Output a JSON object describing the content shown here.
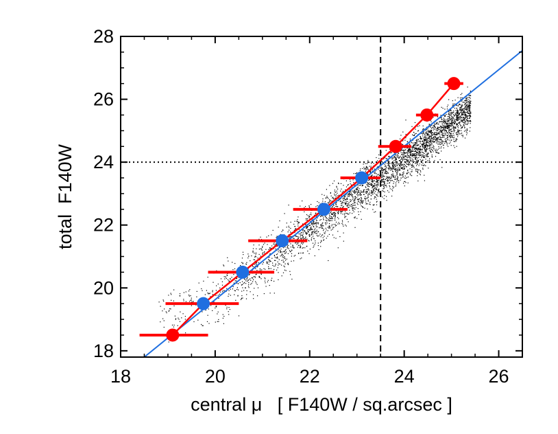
{
  "chart_data": {
    "type": "scatter",
    "title": "",
    "xlabel": "central μ   [ F140W / sq.arcsec ]",
    "ylabel": "total  F140W",
    "xlim": [
      18,
      26.5
    ],
    "ylim": [
      17.8,
      28
    ],
    "xticks": [
      18,
      20,
      22,
      24,
      26
    ],
    "yticks": [
      18,
      20,
      22,
      24,
      26,
      28
    ],
    "xtick_labels": [
      "18",
      "20",
      "22",
      "24",
      "26"
    ],
    "ytick_labels": [
      "18",
      "20",
      "22",
      "24",
      "26",
      "28"
    ],
    "grid": false,
    "reference_lines": {
      "vertical_dashed_x": 23.5,
      "horizontal_dotted_y": 24.0
    },
    "fit_line": {
      "color": "#1f6fe0",
      "x": [
        18.5,
        26.5
      ],
      "y": [
        17.8,
        27.55
      ]
    },
    "scatter_cloud": {
      "color": "#000000",
      "description_points": "dense cloud of individual galaxies along the relation",
      "x_range": [
        18.8,
        25.4
      ],
      "y_range": [
        18.2,
        26.7
      ]
    },
    "binned_points": [
      {
        "y": 18.5,
        "x": 19.1,
        "xerr_low": 18.4,
        "xerr_high": 19.85,
        "color": "#ff0000"
      },
      {
        "y": 19.5,
        "x": 19.75,
        "xerr_low": 18.95,
        "xerr_high": 20.5,
        "color": "#1f6fe0"
      },
      {
        "y": 20.5,
        "x": 20.58,
        "xerr_low": 19.85,
        "xerr_high": 21.25,
        "color": "#1f6fe0"
      },
      {
        "y": 21.5,
        "x": 21.42,
        "xerr_low": 20.7,
        "xerr_high": 21.95,
        "color": "#1f6fe0"
      },
      {
        "y": 22.5,
        "x": 22.3,
        "xerr_low": 21.65,
        "xerr_high": 22.8,
        "color": "#1f6fe0"
      },
      {
        "y": 23.5,
        "x": 23.1,
        "xerr_low": 22.65,
        "xerr_high": 23.5,
        "color": "#1f6fe0"
      },
      {
        "y": 24.5,
        "x": 23.82,
        "xerr_low": 23.45,
        "xerr_high": 24.15,
        "color": "#ff0000"
      },
      {
        "y": 25.5,
        "x": 24.48,
        "xerr_low": 24.25,
        "xerr_high": 24.72,
        "color": "#ff0000"
      },
      {
        "y": 26.5,
        "x": 25.05,
        "xerr_low": 24.85,
        "xerr_high": 25.25,
        "color": "#ff0000"
      }
    ],
    "colors": {
      "binned_faint": "#ff0000",
      "binned_bright": "#1f6fe0",
      "errorbar": "#ff0000",
      "fit": "#1f6fe0"
    }
  }
}
